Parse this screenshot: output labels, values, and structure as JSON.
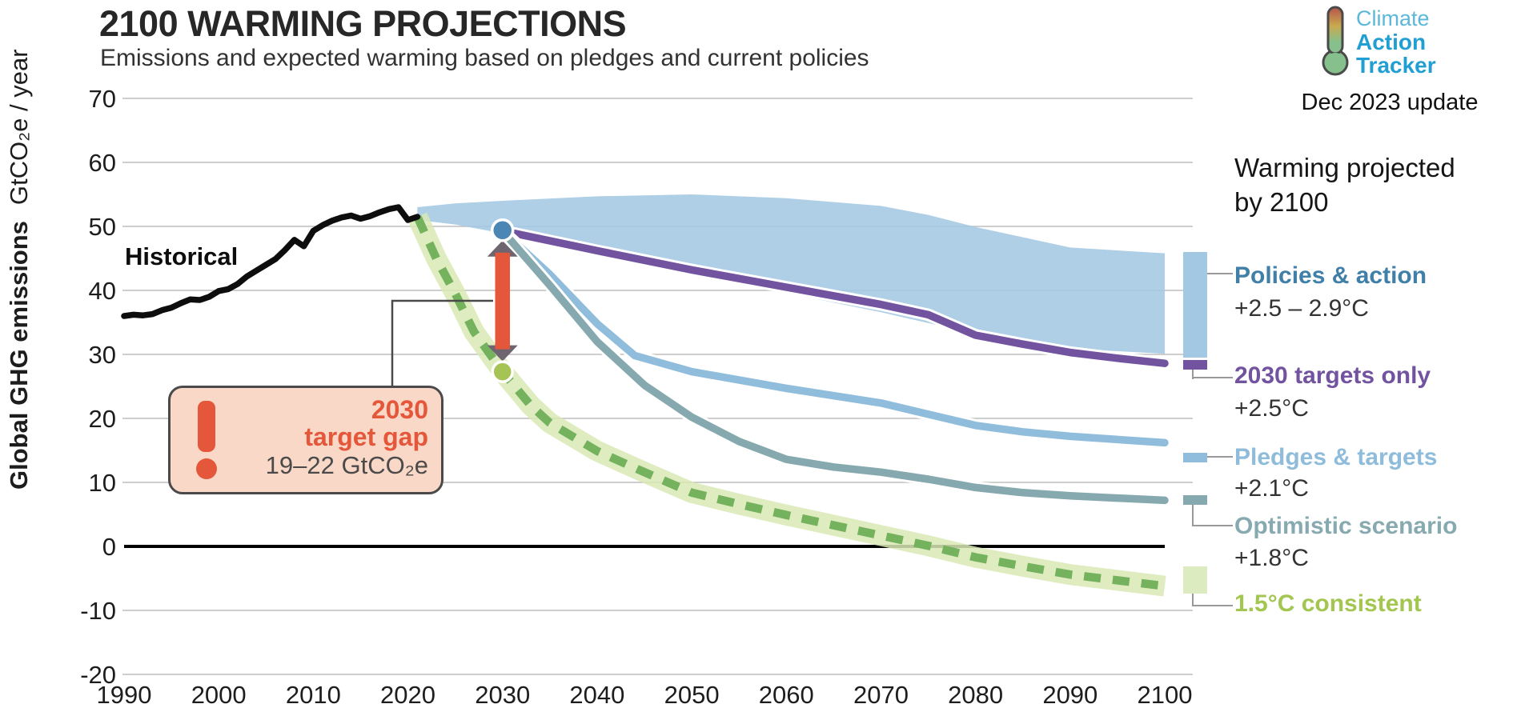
{
  "header": {
    "title": "2100 WARMING PROJECTIONS",
    "subtitle": "Emissions and expected warming based on pledges and current policies"
  },
  "logo": {
    "line1": "Climate",
    "line2": "Action",
    "line3": "Tracker",
    "update": "Dec 2023 update",
    "brand_blue": "#219fd3",
    "thermometer_colors": [
      "#b5544c",
      "#c9a94f",
      "#86c08c"
    ]
  },
  "legend": {
    "heading_line1": "Warming projected",
    "heading_line2": "by 2100",
    "entries": [
      {
        "id": "policies",
        "label": "Policies & action",
        "temp": "+2.5 – 2.9°C",
        "color": "#3f7fa8",
        "swatch_color": "#a3c8e3",
        "swatch": "band"
      },
      {
        "id": "targets2030",
        "label": "2030 targets only",
        "temp": "+2.5°C",
        "color": "#7253a0",
        "swatch_color": "#7253a0",
        "swatch": "thick-line"
      },
      {
        "id": "pledges",
        "label": "Pledges & targets",
        "temp": "+2.1°C",
        "color": "#8fbcdb",
        "swatch_color": "#90bddc",
        "swatch": "thick-line"
      },
      {
        "id": "optimistic",
        "label": "Optimistic scenario",
        "temp": "+1.8°C",
        "color": "#87aab0",
        "swatch_color": "#85a9ae",
        "swatch": "thick-line"
      },
      {
        "id": "consistent15",
        "label": "1.5°C consistent",
        "temp": "",
        "color": "#a2c650",
        "swatch_color": "#dcebc0",
        "swatch": "square"
      }
    ]
  },
  "callout": {
    "year": "2030",
    "gap_label": "target gap",
    "range": "19–22  GtCO₂e",
    "accent_color": "#e4573a"
  },
  "chart_data": {
    "type": "area+line",
    "title": "2100 WARMING PROJECTIONS",
    "xlabel": "",
    "ylabel_bold": "Global GHG emissions",
    "ylabel_units": "GtCO₂e / year",
    "xlim": [
      1990,
      2100
    ],
    "ylim": [
      -20,
      70
    ],
    "x_ticks": [
      1990,
      2000,
      2010,
      2020,
      2030,
      2040,
      2050,
      2060,
      2070,
      2080,
      2090,
      2100
    ],
    "y_ticks": [
      70,
      60,
      50,
      40,
      30,
      20,
      10,
      0,
      -10,
      -20
    ],
    "grid": "horizontal",
    "legend_position": "right",
    "series": [
      {
        "id": "historical",
        "name": "Historical",
        "type": "line",
        "color": "#0d0d0d",
        "width": 7.5,
        "points": [
          [
            1990,
            36
          ],
          [
            1991,
            36.2
          ],
          [
            1992,
            36.1
          ],
          [
            1993,
            36.3
          ],
          [
            1994,
            36.9
          ],
          [
            1995,
            37.3
          ],
          [
            1996,
            38
          ],
          [
            1997,
            38.6
          ],
          [
            1998,
            38.5
          ],
          [
            1999,
            39
          ],
          [
            2000,
            39.9
          ],
          [
            2001,
            40.2
          ],
          [
            2002,
            41
          ],
          [
            2003,
            42.2
          ],
          [
            2004,
            43.1
          ],
          [
            2005,
            44
          ],
          [
            2006,
            44.9
          ],
          [
            2007,
            46.3
          ],
          [
            2008,
            47.9
          ],
          [
            2009,
            46.9
          ],
          [
            2010,
            49.3
          ],
          [
            2011,
            50.2
          ],
          [
            2012,
            50.9
          ],
          [
            2013,
            51.4
          ],
          [
            2014,
            51.7
          ],
          [
            2015,
            51.2
          ],
          [
            2016,
            51.6
          ],
          [
            2017,
            52.2
          ],
          [
            2018,
            52.7
          ],
          [
            2019,
            53
          ],
          [
            2020,
            51
          ],
          [
            2021,
            51.5
          ]
        ]
      },
      {
        "id": "policies_band",
        "name": "Policies & action",
        "type": "band",
        "color": "#a3c8e3",
        "top": [
          [
            2021,
            53
          ],
          [
            2025,
            53.6
          ],
          [
            2030,
            54
          ],
          [
            2040,
            54.7
          ],
          [
            2050,
            55
          ],
          [
            2060,
            54.4
          ],
          [
            2070,
            53.2
          ],
          [
            2075,
            51.8
          ],
          [
            2080,
            49.9
          ],
          [
            2090,
            46.7
          ],
          [
            2100,
            45.8
          ]
        ],
        "bottom": [
          [
            2021,
            51
          ],
          [
            2025,
            50.3
          ],
          [
            2030,
            48.9
          ],
          [
            2040,
            45.5
          ],
          [
            2050,
            42.4
          ],
          [
            2060,
            39.6
          ],
          [
            2070,
            36.6
          ],
          [
            2080,
            33.2
          ],
          [
            2090,
            30.9
          ],
          [
            2100,
            30.1
          ]
        ]
      },
      {
        "id": "targets2030",
        "name": "2030 targets only",
        "type": "cased-line",
        "color": "#7253a0",
        "width": 9.5,
        "points": [
          [
            2030,
            49.3
          ],
          [
            2040,
            46.2
          ],
          [
            2050,
            43.2
          ],
          [
            2060,
            40.5
          ],
          [
            2070,
            37.8
          ],
          [
            2075,
            36.2
          ],
          [
            2080,
            33
          ],
          [
            2085,
            31.6
          ],
          [
            2090,
            30.3
          ],
          [
            2095,
            29.4
          ],
          [
            2100,
            28.6
          ]
        ]
      },
      {
        "id": "pledges",
        "name": "Pledges & targets",
        "type": "cased-line",
        "color": "#90bddc",
        "width": 9.5,
        "points": [
          [
            2030,
            49.3
          ],
          [
            2035,
            42.5
          ],
          [
            2040,
            34.8
          ],
          [
            2044,
            29.8
          ],
          [
            2050,
            27.3
          ],
          [
            2060,
            24.7
          ],
          [
            2070,
            22.4
          ],
          [
            2080,
            18.9
          ],
          [
            2085,
            17.9
          ],
          [
            2090,
            17.2
          ],
          [
            2100,
            16.2
          ]
        ]
      },
      {
        "id": "optimistic",
        "name": "Optimistic scenario",
        "type": "cased-line",
        "color": "#85a9ae",
        "width": 9.5,
        "points": [
          [
            2030,
            49.3
          ],
          [
            2035,
            40.8
          ],
          [
            2040,
            32
          ],
          [
            2045,
            25.2
          ],
          [
            2050,
            20.2
          ],
          [
            2055,
            16.4
          ],
          [
            2060,
            13.6
          ],
          [
            2065,
            12.4
          ],
          [
            2070,
            11.6
          ],
          [
            2075,
            10.5
          ],
          [
            2080,
            9.2
          ],
          [
            2085,
            8.4
          ],
          [
            2090,
            7.9
          ],
          [
            2100,
            7.2
          ]
        ]
      },
      {
        "id": "consistent15",
        "name": "1.5°C consistent",
        "type": "dashed-banded-line",
        "color": "#74b25e",
        "band_color": "#d9e9b5",
        "width": 10.5,
        "band_width": 26,
        "points": [
          [
            2021,
            51.5
          ],
          [
            2023,
            45
          ],
          [
            2025,
            39.5
          ],
          [
            2027,
            33.5
          ],
          [
            2030,
            27.3
          ],
          [
            2033,
            22
          ],
          [
            2035,
            19.3
          ],
          [
            2040,
            14.9
          ],
          [
            2045,
            11.6
          ],
          [
            2050,
            8.4
          ],
          [
            2055,
            6.6
          ],
          [
            2060,
            4.9
          ],
          [
            2065,
            3.3
          ],
          [
            2070,
            1.7
          ],
          [
            2075,
            0.1
          ],
          [
            2080,
            -1.7
          ],
          [
            2085,
            -3.1
          ],
          [
            2090,
            -4.4
          ],
          [
            2095,
            -5.3
          ],
          [
            2100,
            -6.2
          ]
        ]
      }
    ],
    "annotations": {
      "historical_label": {
        "text": "Historical"
      },
      "gap_arrow": {
        "year": 2030,
        "from": 49.4,
        "to": 27.3,
        "shaft_color": "#e4573a",
        "head_color": "#6f6570"
      },
      "gap_dot_top": {
        "year": 2030,
        "value": 49.4,
        "color": "#4c86b4"
      },
      "gap_dot_bottom": {
        "year": 2030,
        "value": 27.3,
        "color": "#a6c455"
      }
    }
  }
}
